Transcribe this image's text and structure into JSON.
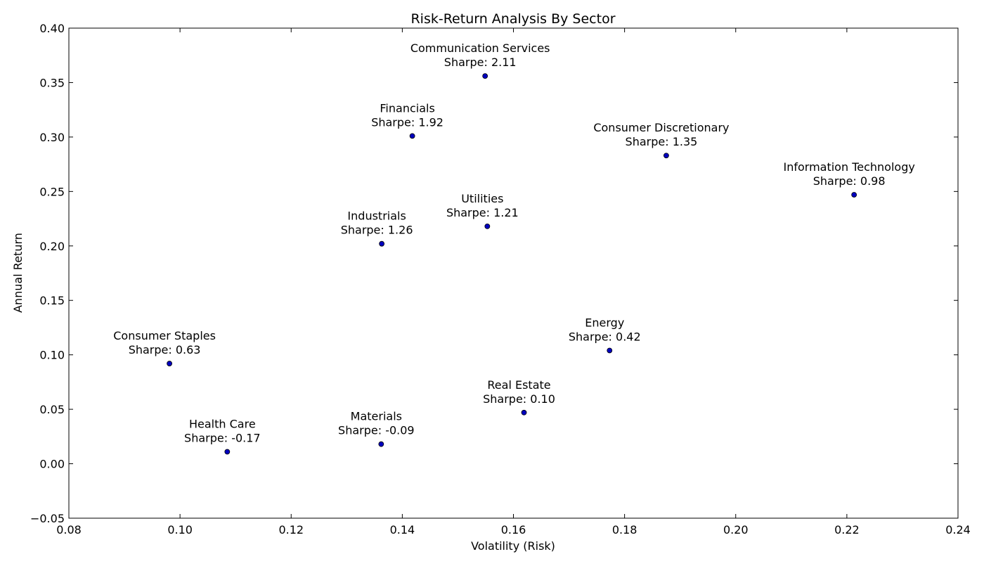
{
  "chart_data": {
    "type": "scatter",
    "title": "Risk-Return Analysis By Sector",
    "xlabel": "Volatility (Risk)",
    "ylabel": "Annual Return",
    "xlim": [
      0.08,
      0.24
    ],
    "ylim": [
      -0.05,
      0.4
    ],
    "xticks": [
      0.08,
      0.1,
      0.12,
      0.14,
      0.16,
      0.18,
      0.2,
      0.22,
      0.24
    ],
    "xtick_labels": [
      "0.08",
      "0.10",
      "0.12",
      "0.14",
      "0.16",
      "0.18",
      "0.20",
      "0.22",
      "0.24"
    ],
    "yticks": [
      -0.05,
      0.0,
      0.05,
      0.1,
      0.15,
      0.2,
      0.25,
      0.3,
      0.35,
      0.4
    ],
    "ytick_labels": [
      "−0.05",
      "0.00",
      "0.05",
      "0.10",
      "0.15",
      "0.20",
      "0.25",
      "0.30",
      "0.35",
      "0.40"
    ],
    "grid": false,
    "marker_color": "#0000bf",
    "points": [
      {
        "sector": "Communication Services",
        "sharpe_label": "Sharpe: 2.11",
        "x": 0.1549,
        "y": 0.356
      },
      {
        "sector": "Financials",
        "sharpe_label": "Sharpe: 1.92",
        "x": 0.1418,
        "y": 0.301
      },
      {
        "sector": "Consumer Discretionary",
        "sharpe_label": "Sharpe: 1.35",
        "x": 0.1875,
        "y": 0.283
      },
      {
        "sector": "Information Technology",
        "sharpe_label": "Sharpe: 0.98",
        "x": 0.2213,
        "y": 0.247
      },
      {
        "sector": "Utilities",
        "sharpe_label": "Sharpe: 1.21",
        "x": 0.1553,
        "y": 0.218
      },
      {
        "sector": "Industrials",
        "sharpe_label": "Sharpe: 1.26",
        "x": 0.1363,
        "y": 0.202
      },
      {
        "sector": "Consumer Staples",
        "sharpe_label": "Sharpe: 0.63",
        "x": 0.0981,
        "y": 0.092
      },
      {
        "sector": "Energy",
        "sharpe_label": "Sharpe: 0.42",
        "x": 0.1773,
        "y": 0.104
      },
      {
        "sector": "Real Estate",
        "sharpe_label": "Sharpe: 0.10",
        "x": 0.1619,
        "y": 0.047
      },
      {
        "sector": "Materials",
        "sharpe_label": "Sharpe: -0.09",
        "x": 0.1362,
        "y": 0.018
      },
      {
        "sector": "Health Care",
        "sharpe_label": "Sharpe: -0.17",
        "x": 0.1085,
        "y": 0.011
      }
    ]
  }
}
